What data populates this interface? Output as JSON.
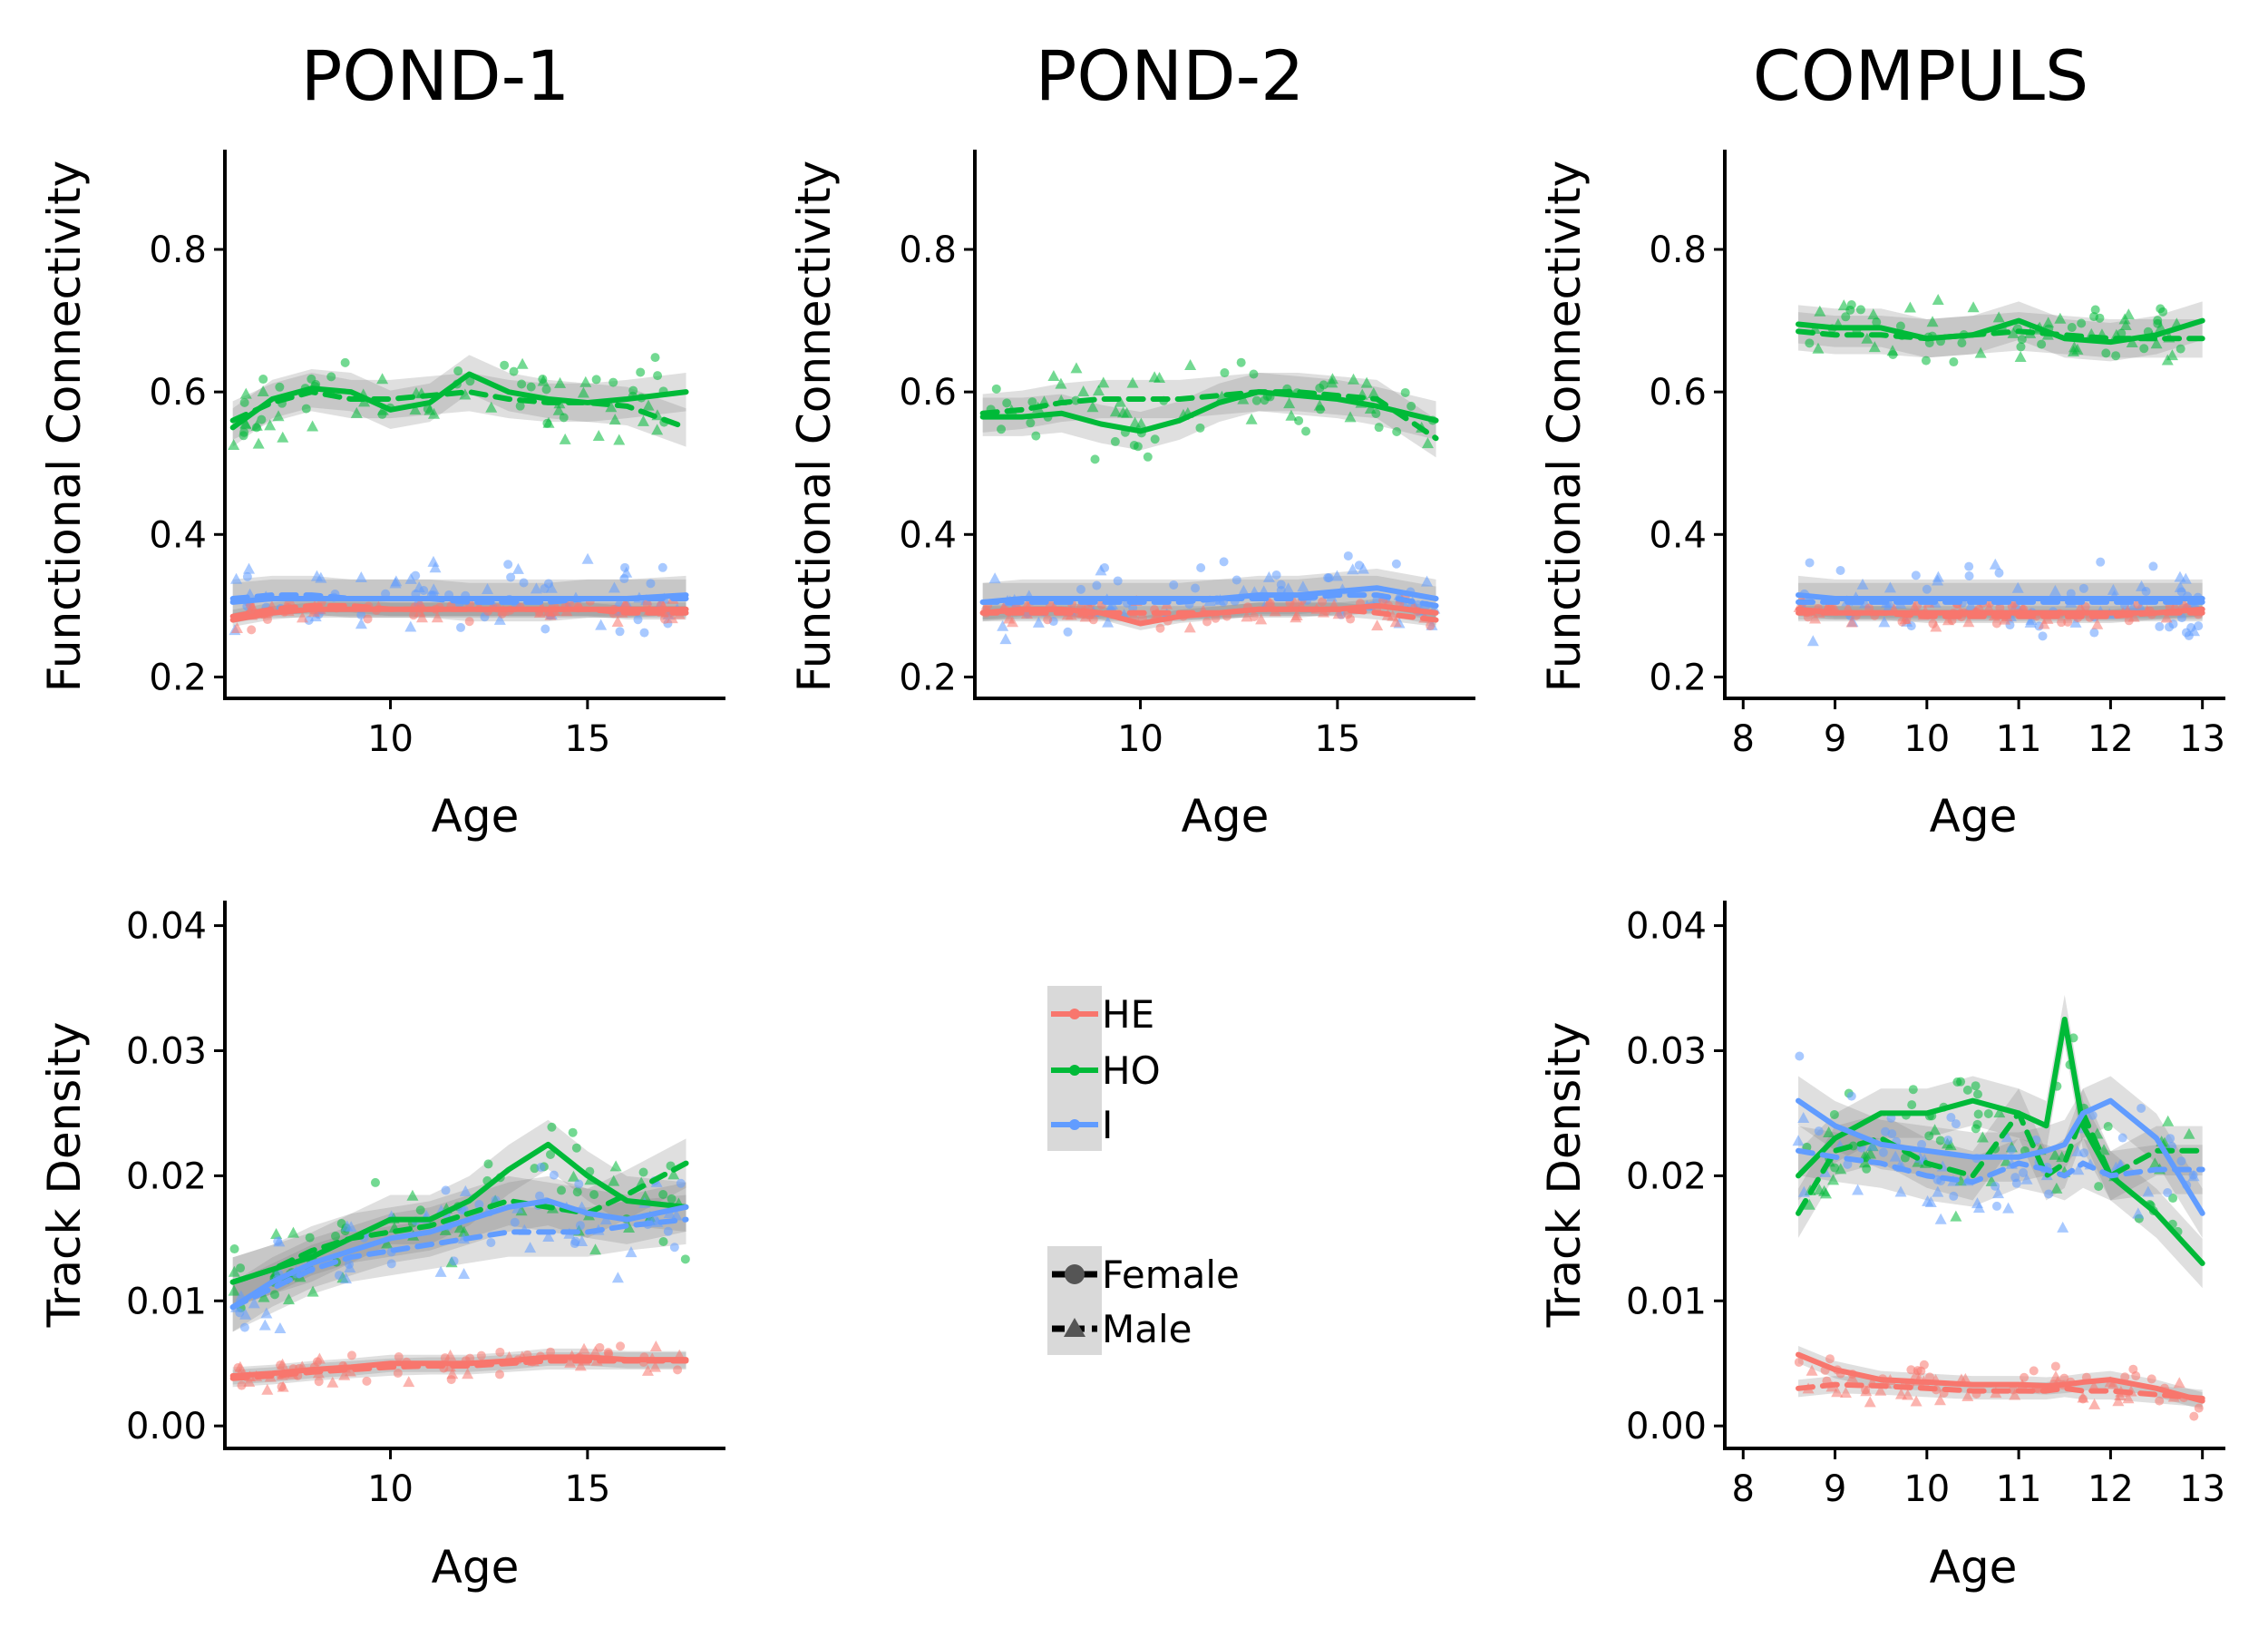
{
  "column_titles": [
    "POND-1",
    "POND-2",
    "COMPULS"
  ],
  "legend": {
    "group": [
      {
        "label": "HE",
        "color": "#F8766D"
      },
      {
        "label": "HO",
        "color": "#00BA38"
      },
      {
        "label": "I",
        "color": "#619CFF"
      }
    ],
    "sex": [
      {
        "label": "Female",
        "shape": "circle",
        "line": "solid"
      },
      {
        "label": "Male",
        "shape": "triangle",
        "line": "dashed"
      }
    ]
  },
  "chart_data": [
    {
      "type": "line",
      "title": "POND-1",
      "xlabel": "Age",
      "ylabel": "Functional Connectivity",
      "xlim": [
        5.8,
        18.5
      ],
      "ylim": [
        0.17,
        0.94
      ],
      "xticks": [
        10,
        15
      ],
      "yticks": [
        0.2,
        0.4,
        0.6,
        0.8
      ],
      "x": [
        6,
        7,
        8,
        9,
        10,
        11,
        12,
        13,
        14,
        15,
        16,
        17.5
      ],
      "series": [
        {
          "name": "HO",
          "sex": "Female",
          "values": [
            0.55,
            0.59,
            0.605,
            0.6,
            0.575,
            0.585,
            0.625,
            0.6,
            0.59,
            0.585,
            0.59,
            0.6
          ]
        },
        {
          "name": "HO",
          "sex": "Male",
          "values": [
            0.56,
            0.585,
            0.6,
            0.59,
            0.59,
            0.595,
            0.6,
            0.59,
            0.585,
            0.585,
            0.58,
            0.55
          ]
        },
        {
          "name": "I",
          "sex": "Female",
          "values": [
            0.305,
            0.31,
            0.31,
            0.31,
            0.31,
            0.31,
            0.31,
            0.31,
            0.31,
            0.31,
            0.31,
            0.315
          ]
        },
        {
          "name": "I",
          "sex": "Male",
          "values": [
            0.31,
            0.315,
            0.315,
            0.31,
            0.31,
            0.31,
            0.305,
            0.305,
            0.305,
            0.31,
            0.31,
            0.31
          ]
        },
        {
          "name": "HE",
          "sex": "Female",
          "values": [
            0.28,
            0.29,
            0.295,
            0.295,
            0.295,
            0.295,
            0.295,
            0.295,
            0.295,
            0.295,
            0.295,
            0.295
          ]
        },
        {
          "name": "HE",
          "sex": "Male",
          "values": [
            0.285,
            0.295,
            0.3,
            0.3,
            0.295,
            0.295,
            0.295,
            0.295,
            0.295,
            0.295,
            0.29,
            0.29
          ]
        }
      ]
    },
    {
      "type": "line",
      "title": "POND-2",
      "xlabel": "Age",
      "ylabel": "Functional Connectivity",
      "xlim": [
        5.8,
        18.5
      ],
      "ylim": [
        0.17,
        0.94
      ],
      "xticks": [
        10,
        15
      ],
      "yticks": [
        0.2,
        0.4,
        0.6,
        0.8
      ],
      "x": [
        6,
        7,
        8,
        9,
        10,
        11,
        12,
        13,
        14,
        15,
        16,
        17.5
      ],
      "series": [
        {
          "name": "HO",
          "sex": "Female",
          "values": [
            0.565,
            0.565,
            0.57,
            0.555,
            0.545,
            0.56,
            0.585,
            0.6,
            0.595,
            0.59,
            0.58,
            0.56
          ]
        },
        {
          "name": "HO",
          "sex": "Male",
          "values": [
            0.57,
            0.575,
            0.585,
            0.59,
            0.59,
            0.59,
            0.595,
            0.6,
            0.6,
            0.595,
            0.59,
            0.535
          ]
        },
        {
          "name": "I",
          "sex": "Female",
          "values": [
            0.305,
            0.31,
            0.31,
            0.31,
            0.31,
            0.31,
            0.31,
            0.315,
            0.315,
            0.32,
            0.325,
            0.31
          ]
        },
        {
          "name": "I",
          "sex": "Male",
          "values": [
            0.305,
            0.305,
            0.305,
            0.305,
            0.305,
            0.305,
            0.31,
            0.31,
            0.31,
            0.315,
            0.315,
            0.3
          ]
        },
        {
          "name": "HE",
          "sex": "Female",
          "values": [
            0.29,
            0.295,
            0.295,
            0.29,
            0.275,
            0.285,
            0.29,
            0.295,
            0.295,
            0.295,
            0.3,
            0.29
          ]
        },
        {
          "name": "HE",
          "sex": "Male",
          "values": [
            0.29,
            0.29,
            0.29,
            0.29,
            0.29,
            0.29,
            0.29,
            0.295,
            0.295,
            0.295,
            0.29,
            0.28
          ]
        }
      ]
    },
    {
      "type": "line",
      "title": "COMPULS",
      "xlabel": "Age",
      "ylabel": "Functional Connectivity",
      "xlim": [
        7.8,
        13.25
      ],
      "ylim": [
        0.17,
        0.94
      ],
      "xticks": [
        8,
        9,
        10,
        11,
        12,
        13
      ],
      "yticks": [
        0.2,
        0.4,
        0.6,
        0.8
      ],
      "x": [
        8.6,
        9,
        9.5,
        10,
        10.5,
        11,
        11.5,
        12,
        12.5,
        13
      ],
      "series": [
        {
          "name": "HO",
          "sex": "Female",
          "values": [
            0.695,
            0.69,
            0.69,
            0.675,
            0.68,
            0.7,
            0.675,
            0.67,
            0.68,
            0.7
          ]
        },
        {
          "name": "HO",
          "sex": "Male",
          "values": [
            0.685,
            0.68,
            0.68,
            0.675,
            0.68,
            0.685,
            0.68,
            0.675,
            0.675,
            0.675
          ]
        },
        {
          "name": "I",
          "sex": "Female",
          "values": [
            0.315,
            0.31,
            0.31,
            0.31,
            0.31,
            0.31,
            0.31,
            0.31,
            0.31,
            0.31
          ]
        },
        {
          "name": "I",
          "sex": "Male",
          "values": [
            0.305,
            0.305,
            0.305,
            0.305,
            0.305,
            0.305,
            0.305,
            0.305,
            0.305,
            0.305
          ]
        },
        {
          "name": "HE",
          "sex": "Female",
          "values": [
            0.295,
            0.29,
            0.29,
            0.29,
            0.29,
            0.29,
            0.29,
            0.29,
            0.29,
            0.295
          ]
        },
        {
          "name": "HE",
          "sex": "Male",
          "values": [
            0.29,
            0.29,
            0.29,
            0.285,
            0.285,
            0.285,
            0.285,
            0.285,
            0.29,
            0.29
          ]
        }
      ]
    },
    {
      "type": "line",
      "title": "POND-1",
      "xlabel": "Age",
      "ylabel": "Track Density",
      "xlim": [
        5.8,
        18.5
      ],
      "ylim": [
        -0.0018,
        0.042
      ],
      "xticks": [
        10,
        15
      ],
      "yticks": [
        0.0,
        0.01,
        0.02,
        0.03,
        0.04
      ],
      "ytick_labels": [
        "0.00",
        "0.01",
        "0.02",
        "0.03",
        "0.04"
      ],
      "x": [
        6,
        7,
        8,
        9,
        10,
        11,
        12,
        13,
        14,
        15,
        16,
        17.5
      ],
      "series": [
        {
          "name": "HO",
          "sex": "Female",
          "values": [
            0.0115,
            0.0125,
            0.0135,
            0.015,
            0.0165,
            0.0165,
            0.018,
            0.0205,
            0.0225,
            0.02,
            0.018,
            0.0175
          ]
        },
        {
          "name": "HO",
          "sex": "Male",
          "values": [
            0.0115,
            0.0125,
            0.014,
            0.015,
            0.0155,
            0.016,
            0.017,
            0.018,
            0.0175,
            0.017,
            0.0185,
            0.021
          ]
        },
        {
          "name": "I",
          "sex": "Female",
          "values": [
            0.0095,
            0.0115,
            0.013,
            0.014,
            0.015,
            0.0155,
            0.0165,
            0.0175,
            0.018,
            0.017,
            0.0165,
            0.0175
          ]
        },
        {
          "name": "I",
          "sex": "Male",
          "values": [
            0.0095,
            0.011,
            0.0125,
            0.0135,
            0.014,
            0.0145,
            0.015,
            0.0155,
            0.0155,
            0.0155,
            0.016,
            0.0165
          ]
        },
        {
          "name": "HE",
          "sex": "Female",
          "values": [
            0.004,
            0.0042,
            0.0045,
            0.0047,
            0.005,
            0.005,
            0.005,
            0.0052,
            0.0055,
            0.0055,
            0.0053,
            0.0053
          ]
        },
        {
          "name": "HE",
          "sex": "Male",
          "values": [
            0.0038,
            0.004,
            0.0043,
            0.0045,
            0.0047,
            0.0048,
            0.0048,
            0.005,
            0.0052,
            0.0052,
            0.0052,
            0.0052
          ]
        }
      ]
    },
    {
      "type": "line",
      "title": "COMPULS",
      "xlabel": "Age",
      "ylabel": "Track Density",
      "xlim": [
        7.8,
        13.25
      ],
      "ylim": [
        -0.0018,
        0.042
      ],
      "xticks": [
        8,
        9,
        10,
        11,
        12,
        13
      ],
      "yticks": [
        0.0,
        0.01,
        0.02,
        0.03,
        0.04
      ],
      "ytick_labels": [
        "0.00",
        "0.01",
        "0.02",
        "0.03",
        "0.04"
      ],
      "x": [
        8.6,
        9,
        9.5,
        10,
        10.5,
        11,
        11.3,
        11.5,
        11.7,
        12,
        12.5,
        13
      ],
      "series": [
        {
          "name": "HO",
          "sex": "Female",
          "values": [
            0.02,
            0.023,
            0.025,
            0.025,
            0.026,
            0.025,
            0.024,
            0.0325,
            0.024,
            0.02,
            0.017,
            0.013
          ]
        },
        {
          "name": "HO",
          "sex": "Male",
          "values": [
            0.017,
            0.022,
            0.023,
            0.021,
            0.02,
            0.025,
            0.02,
            0.021,
            0.025,
            0.02,
            0.022,
            0.022
          ]
        },
        {
          "name": "I",
          "sex": "Female",
          "values": [
            0.026,
            0.024,
            0.0225,
            0.022,
            0.0215,
            0.0215,
            0.022,
            0.0225,
            0.025,
            0.026,
            0.023,
            0.017
          ]
        },
        {
          "name": "I",
          "sex": "Male",
          "values": [
            0.022,
            0.0215,
            0.021,
            0.02,
            0.0195,
            0.021,
            0.0205,
            0.02,
            0.021,
            0.02,
            0.0205,
            0.0205
          ]
        },
        {
          "name": "HE",
          "sex": "Female",
          "values": [
            0.0057,
            0.0045,
            0.0037,
            0.0035,
            0.0033,
            0.0033,
            0.0032,
            0.0033,
            0.0035,
            0.0037,
            0.003,
            0.002
          ]
        },
        {
          "name": "HE",
          "sex": "Male",
          "values": [
            0.003,
            0.0033,
            0.0032,
            0.003,
            0.0028,
            0.0028,
            0.0028,
            0.003,
            0.0028,
            0.0028,
            0.0025,
            0.0022
          ]
        }
      ]
    }
  ]
}
